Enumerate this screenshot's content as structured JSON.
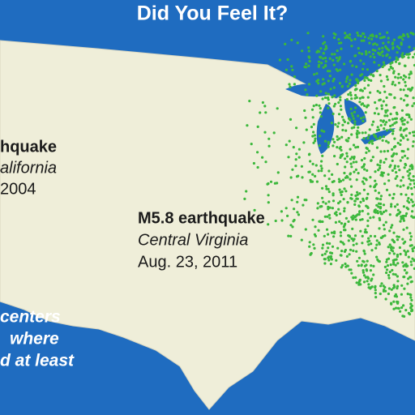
{
  "title": "Did You Feel It?",
  "annotations": [
    {
      "lines": [
        "hquake",
        "alifornia",
        "2004"
      ]
    },
    {
      "lines": [
        "M5.8 earthquake",
        "Central Virginia",
        "Aug. 23, 2011"
      ]
    },
    {
      "lines": [
        "centers",
        "where",
        "d at least"
      ]
    }
  ]
}
